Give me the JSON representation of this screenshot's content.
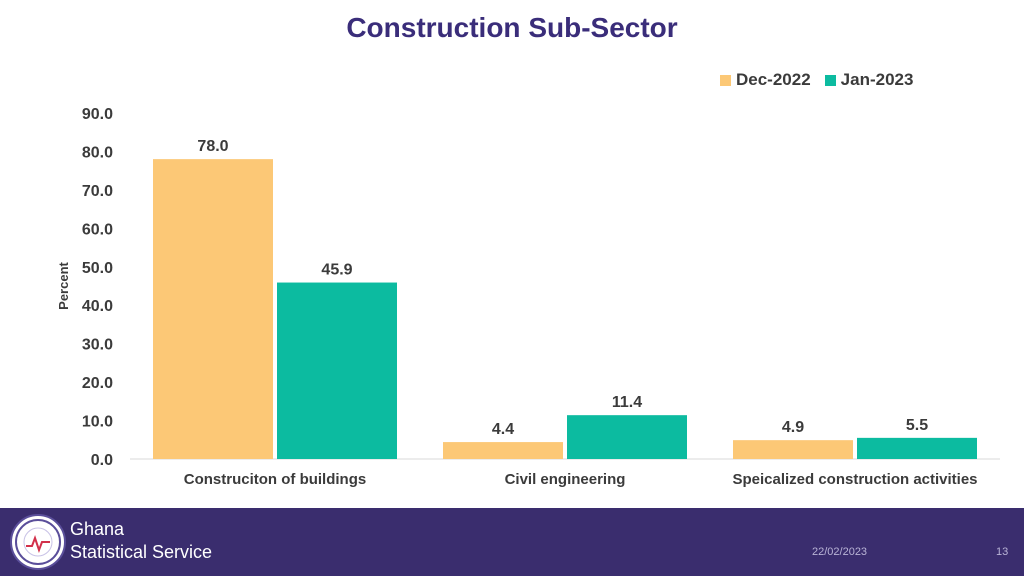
{
  "page": {
    "date": "22/02/2023",
    "page_number": "13",
    "organization_line1": "Ghana",
    "organization_line2": "Statistical Service",
    "logo_seal_text": "STATISTICAL SERVICE GHANA"
  },
  "colors": {
    "series1": "#fcc876",
    "series2": "#0cbba0",
    "title": "#3a2d7a",
    "footer": "#3a2d6e"
  },
  "chart_data": {
    "type": "bar",
    "title": "Construction Sub-Sector",
    "xlabel": "",
    "ylabel": "Percent",
    "ylim": [
      0,
      90
    ],
    "yticks": [
      "0.0",
      "10.0",
      "20.0",
      "30.0",
      "40.0",
      "50.0",
      "60.0",
      "70.0",
      "80.0",
      "90.0"
    ],
    "categories": [
      "Construciton of buildings",
      "Civil engineering",
      "Speicalized construction activities"
    ],
    "series": [
      {
        "name": "Dec-2022",
        "values": [
          78.0,
          4.4,
          4.9
        ],
        "labels": [
          "78.0",
          "4.4",
          "4.9"
        ]
      },
      {
        "name": "Jan-2023",
        "values": [
          45.9,
          11.4,
          5.5
        ],
        "labels": [
          "45.9",
          "11.4",
          "5.5"
        ]
      }
    ],
    "grid": false,
    "legend_position": "top-right"
  }
}
